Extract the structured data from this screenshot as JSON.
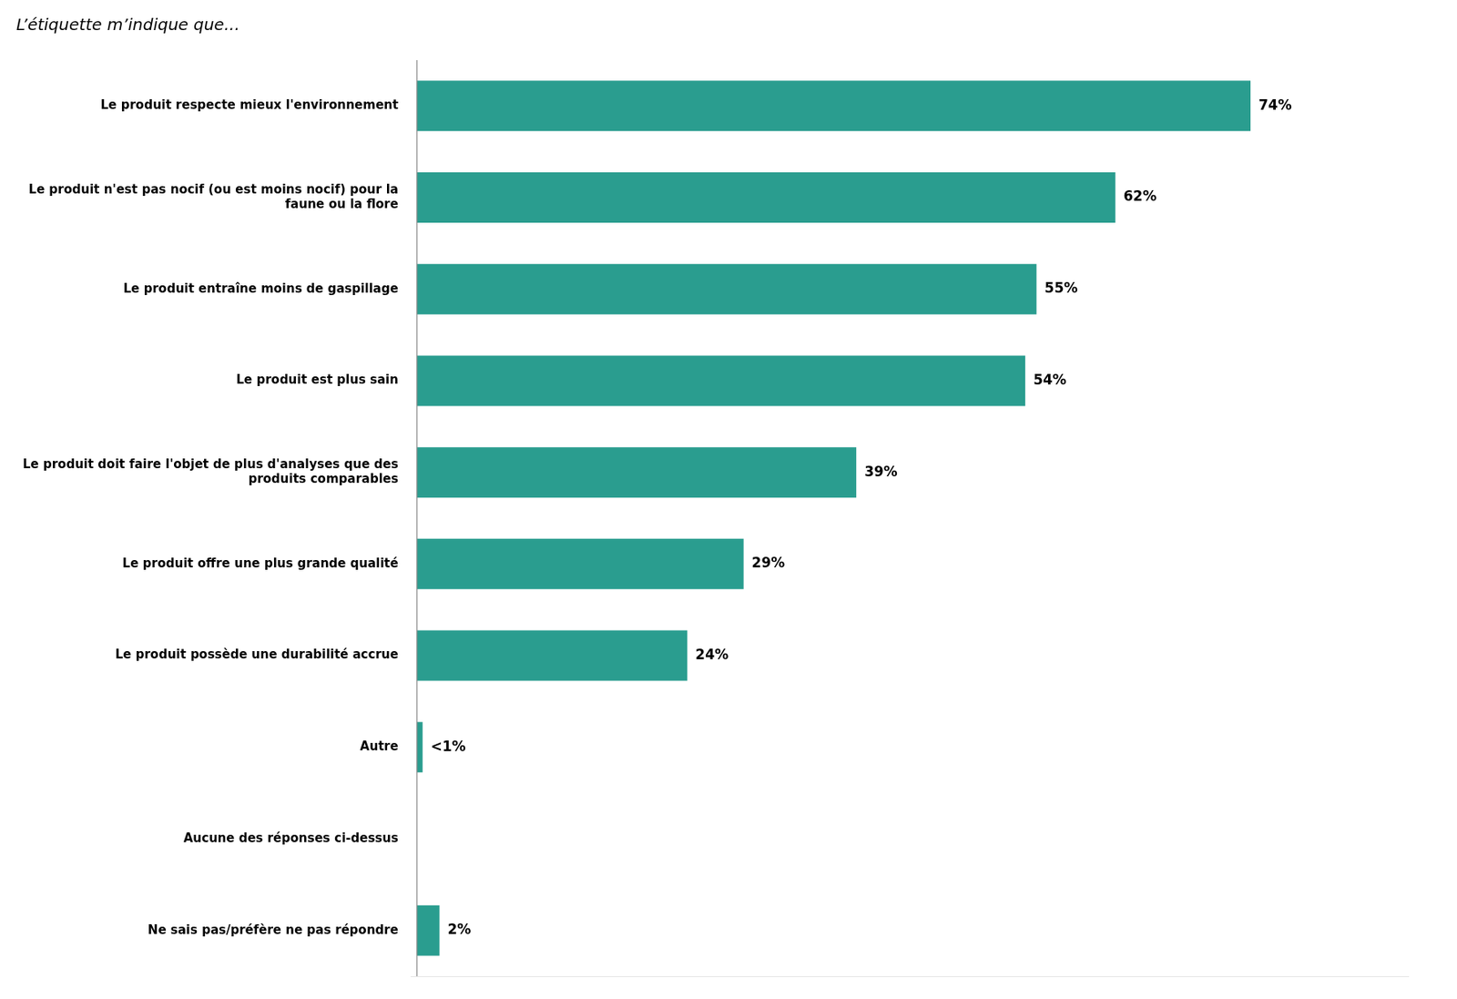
{
  "chart_data": {
    "type": "bar",
    "orientation": "horizontal",
    "title": "L’étiquette m’indique que...",
    "categories": [
      "Le produit respecte mieux l'environnement",
      "Le produit n'est pas nocif (ou est moins nocif) pour la\nfaune ou la flore",
      "Le produit entraîne moins de gaspillage",
      "Le produit est plus sain",
      "Le produit doit faire l'objet de plus d'analyses que des\nproduits comparables",
      "Le produit offre une plus grande qualité",
      "Le produit possède une durabilité accrue",
      "Autre",
      "Aucune des réponses ci-dessus",
      "Ne sais pas/préfère ne pas répondre"
    ],
    "values": [
      74,
      62,
      55,
      54,
      39,
      29,
      24,
      0.5,
      0,
      2
    ],
    "value_labels": [
      "74%",
      "62%",
      "55%",
      "54%",
      "39%",
      "29%",
      "24%",
      "<1%",
      null,
      "2%"
    ],
    "color": "#2a9d8f",
    "xlim": [
      -0.5,
      88
    ],
    "grid": false,
    "data_labels": true,
    "tick_labels": "y"
  }
}
